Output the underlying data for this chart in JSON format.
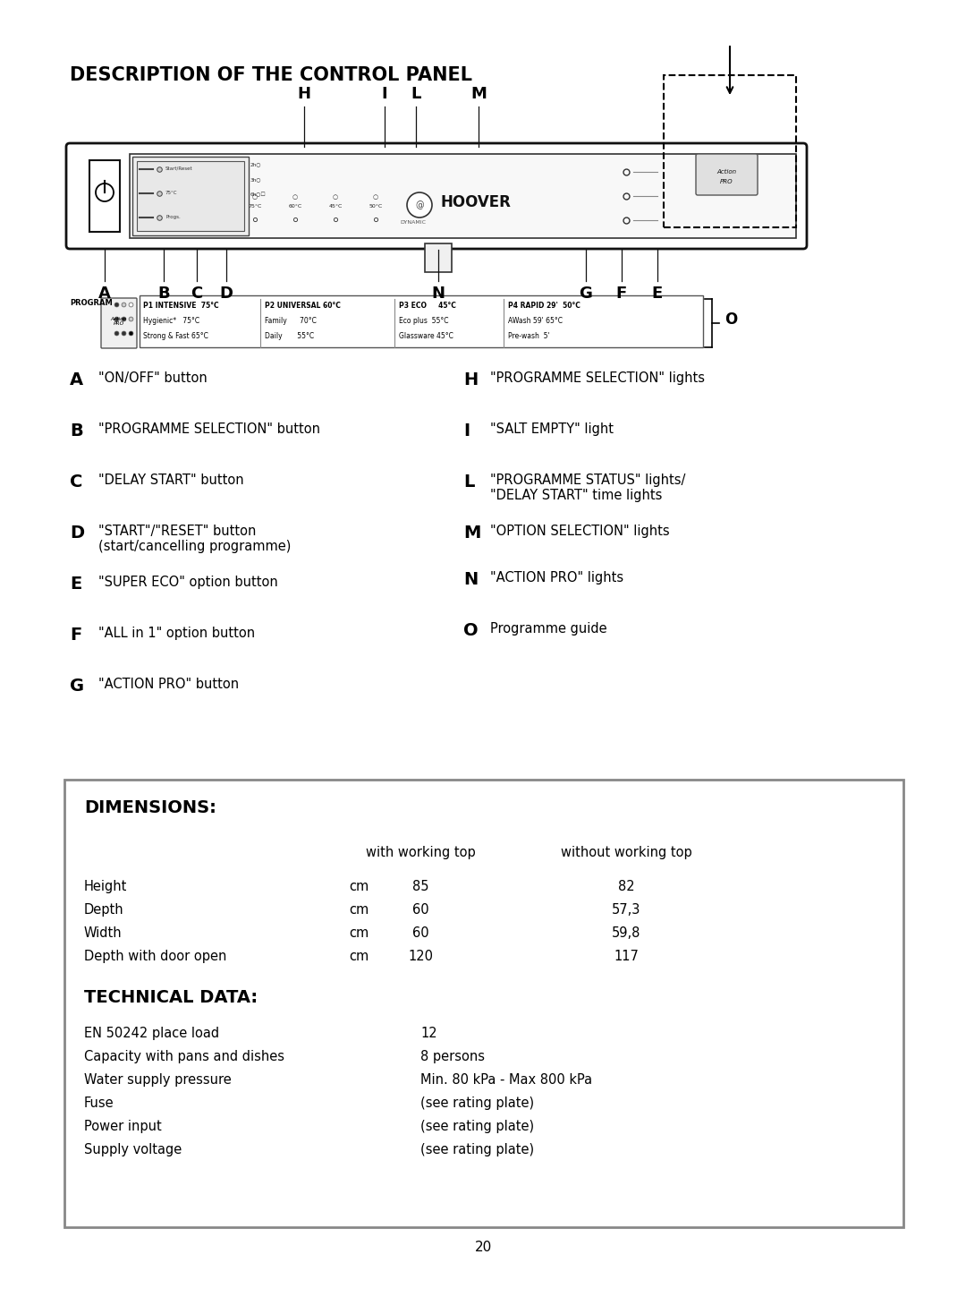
{
  "title": "DESCRIPTION OF THE CONTROL PANEL",
  "page_number": "20",
  "bg_color": "#ffffff",
  "panel_labels_left": [
    {
      "letter": "A",
      "text": "\"ON/OFF\" button"
    },
    {
      "letter": "B",
      "text": "\"PROGRAMME SELECTION\" button"
    },
    {
      "letter": "C",
      "text": "\"DELAY START\" button"
    },
    {
      "letter": "D",
      "text": "\"START\"/\"RESET\" button\n(start/cancelling programme)"
    },
    {
      "letter": "E",
      "text": "\"SUPER ECO\" option button"
    },
    {
      "letter": "F",
      "text": "\"ALL in 1\" option button"
    },
    {
      "letter": "G",
      "text": "\"ACTION PRO\" button"
    }
  ],
  "panel_labels_right": [
    {
      "letter": "H",
      "text": "\"PROGRAMME SELECTION\" lights"
    },
    {
      "letter": "I",
      "text": "\"SALT EMPTY\" light"
    },
    {
      "letter": "L",
      "text": "\"PROGRAMME STATUS\" lights/\n\"DELAY START\" time lights"
    },
    {
      "letter": "M",
      "text": "\"OPTION SELECTION\" lights"
    },
    {
      "letter": "N",
      "text": "\"ACTION PRO\" lights"
    },
    {
      "letter": "O",
      "text": "Programme guide"
    }
  ],
  "dimensions_title": "DIMENSIONS:",
  "dimensions_header_col1": "with working top",
  "dimensions_header_col2": "without working top",
  "dimensions_rows": [
    {
      "label": "Height",
      "unit": "cm",
      "val1": "85",
      "val2": "82"
    },
    {
      "label": "Depth",
      "unit": "cm",
      "val1": "60",
      "val2": "57,3"
    },
    {
      "label": "Width",
      "unit": "cm",
      "val1": "60",
      "val2": "59,8"
    },
    {
      "label": "Depth with door open",
      "unit": "cm",
      "val1": "120",
      "val2": "117"
    }
  ],
  "tech_title": "TECHNICAL DATA:",
  "tech_rows": [
    {
      "label": "EN 50242 place load",
      "value": "12"
    },
    {
      "label": "Capacity with pans and dishes",
      "value": "8 persons"
    },
    {
      "label": "Water supply pressure",
      "value": "Min. 80 kPa - Max 800 kPa"
    },
    {
      "label": "Fuse",
      "value": "(see rating plate)"
    },
    {
      "label": "Power input",
      "value": "(see rating plate)"
    },
    {
      "label": "Supply voltage",
      "value": "(see rating plate)"
    }
  ],
  "prog_rows": [
    [
      "P1 INTENSIVE  75°C",
      "P2 UNIVERSAL 60°C",
      "P3 ECO     45°C",
      "P4 RAPID 29'  50°C"
    ],
    [
      "Hygienic*   75°C",
      "Family      70°C",
      "Eco plus  55°C",
      "AWash 59' 65°C"
    ],
    [
      "Strong & Fast 65°C",
      "Daily       55°C",
      "Glassware 45°C",
      "Pre-wash  5'"
    ]
  ]
}
